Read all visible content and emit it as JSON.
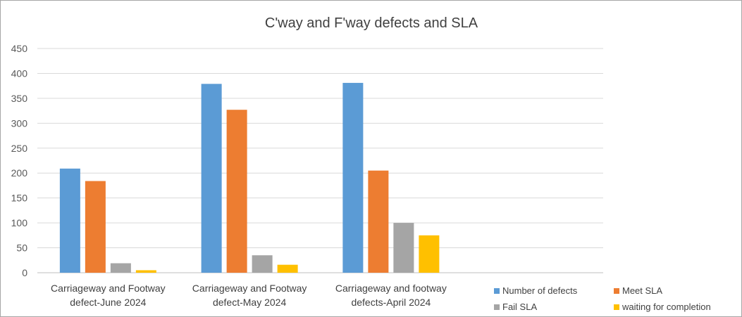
{
  "chart_data": {
    "type": "bar",
    "title": "C'way and F'way defects and SLA",
    "xlabel": "",
    "ylabel": "",
    "ylim": [
      0,
      450
    ],
    "yticks": [
      0,
      50,
      100,
      150,
      200,
      250,
      300,
      350,
      400,
      450
    ],
    "grid": true,
    "legend_position": "bottom-right",
    "categories": [
      [
        "Carriageway and Footway",
        "defect-June 2024"
      ],
      [
        "Carriageway and Footway",
        "defect-May 2024"
      ],
      [
        "Carriageway and footway",
        "defects-April 2024"
      ]
    ],
    "empty_slots_after": 1,
    "series": [
      {
        "name": "Number of defects",
        "color": "#5b9bd5",
        "values": [
          209,
          379,
          381
        ]
      },
      {
        "name": "Meet SLA",
        "color": "#ed7d31",
        "values": [
          184,
          327,
          205
        ]
      },
      {
        "name": "Fail SLA",
        "color": "#a5a5a5",
        "values": [
          19,
          35,
          100
        ]
      },
      {
        "name": "waiting for completion",
        "color": "#ffc000",
        "values": [
          5,
          16,
          75
        ]
      }
    ]
  }
}
